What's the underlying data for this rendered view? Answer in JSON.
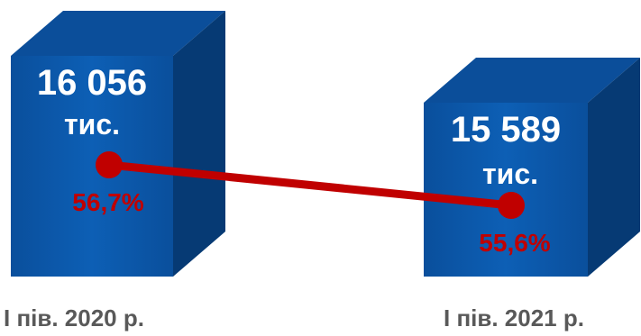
{
  "chart_data": {
    "type": "bar",
    "categories": [
      "I пів. 2020 р.",
      "I пів. 2021 р."
    ],
    "series": [
      {
        "values": [
          16056,
          15589
        ],
        "labels": [
          "16 056",
          "15 589"
        ],
        "unit": "тис."
      },
      {
        "values": [
          56.7,
          55.6
        ],
        "labels": [
          "56,7%",
          "55,6%"
        ]
      }
    ],
    "colors": {
      "box_front": "#0a56a6",
      "box_top": "#0b4e9a",
      "box_side": "#063a74",
      "line": "#c00000",
      "marker": "#c00000",
      "category_text": "#595959"
    }
  }
}
